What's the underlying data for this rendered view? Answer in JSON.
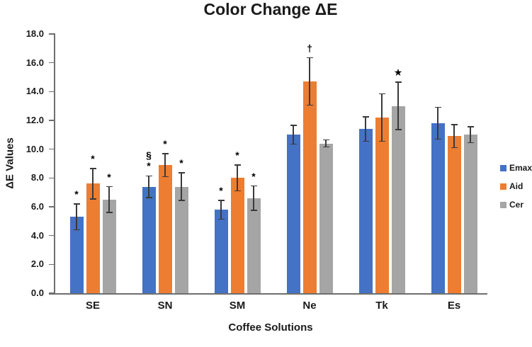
{
  "chart_data": {
    "type": "bar",
    "title": "Color Change ΔE",
    "xlabel": "Coffee Solutions",
    "ylabel": "ΔE Values",
    "categories": [
      "SE",
      "SN",
      "SM",
      "Ne",
      "Tk",
      "Es"
    ],
    "series": [
      {
        "name": "Emax",
        "color": "#4472C4",
        "values": [
          5.3,
          7.4,
          5.8,
          11.0,
          11.4,
          11.8
        ],
        "errors": [
          0.9,
          0.75,
          0.65,
          0.65,
          0.85,
          1.1
        ],
        "annotations": [
          "*",
          "§|*",
          "*",
          "",
          "",
          ""
        ]
      },
      {
        "name": "Aid",
        "color": "#ED7D31",
        "values": [
          7.6,
          8.9,
          8.0,
          14.7,
          12.2,
          10.9
        ],
        "errors": [
          1.05,
          0.8,
          0.9,
          1.65,
          1.65,
          0.8
        ],
        "annotations": [
          "*",
          "*",
          "*",
          "†",
          "",
          ""
        ]
      },
      {
        "name": "Cer",
        "color": "#A5A5A5",
        "values": [
          6.5,
          7.4,
          6.6,
          10.4,
          13.0,
          11.0
        ],
        "errors": [
          0.9,
          0.95,
          0.85,
          0.25,
          1.65,
          0.55
        ],
        "annotations": [
          "*",
          "*",
          "*",
          "",
          "★",
          ""
        ]
      }
    ],
    "ylim": [
      0,
      18
    ],
    "ytick_step": 2,
    "ytick_decimals": 1,
    "grid": false,
    "legend_position": "right",
    "colors": {
      "axis": "#6e6e6e",
      "error_bar": "#3a3a3a",
      "text": "#1a1a1a"
    }
  }
}
